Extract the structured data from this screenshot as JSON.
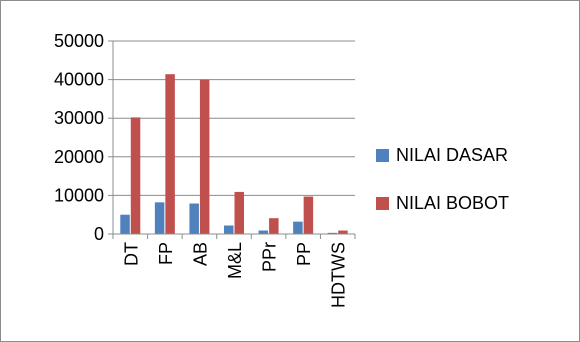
{
  "chart_data": {
    "type": "bar",
    "categories": [
      "DT",
      "FP",
      "AB",
      "M&L",
      "PPr",
      "PP",
      "HDTWS"
    ],
    "series": [
      {
        "name": "NILAI DASAR",
        "color": "#4f81bd",
        "values": [
          5000,
          8200,
          7900,
          2200,
          900,
          3200,
          300
        ]
      },
      {
        "name": "NILAI BOBOT",
        "color": "#c0504d",
        "values": [
          30200,
          41400,
          40000,
          10900,
          4100,
          9700,
          900
        ]
      }
    ],
    "yticks": [
      "0",
      "10000",
      "20000",
      "30000",
      "40000",
      "50000"
    ],
    "ylim": [
      0,
      50000
    ],
    "grid": true,
    "legend_position": "right"
  }
}
